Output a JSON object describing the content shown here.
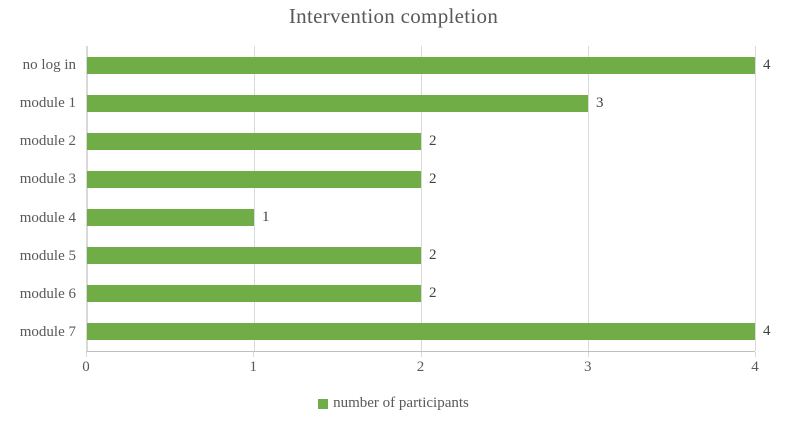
{
  "chart_data": {
    "type": "bar",
    "orientation": "horizontal",
    "title": "Intervention completion",
    "categories": [
      "no log in",
      "module 1",
      "module 2",
      "module 3",
      "module 4",
      "module 5",
      "module 6",
      "module 7"
    ],
    "values": [
      4,
      3,
      2,
      2,
      1,
      2,
      2,
      4
    ],
    "xlim": [
      0,
      4
    ],
    "xticks": [
      0,
      1,
      2,
      3,
      4
    ],
    "grid": "vertical",
    "legend_position": "bottom",
    "legend_label": "number of participants",
    "colors": {
      "bar": "#70ad47",
      "gridline": "#d9d9d9",
      "axis_text": "#595959",
      "value_label": "#404040",
      "title_text": "#595959"
    }
  }
}
